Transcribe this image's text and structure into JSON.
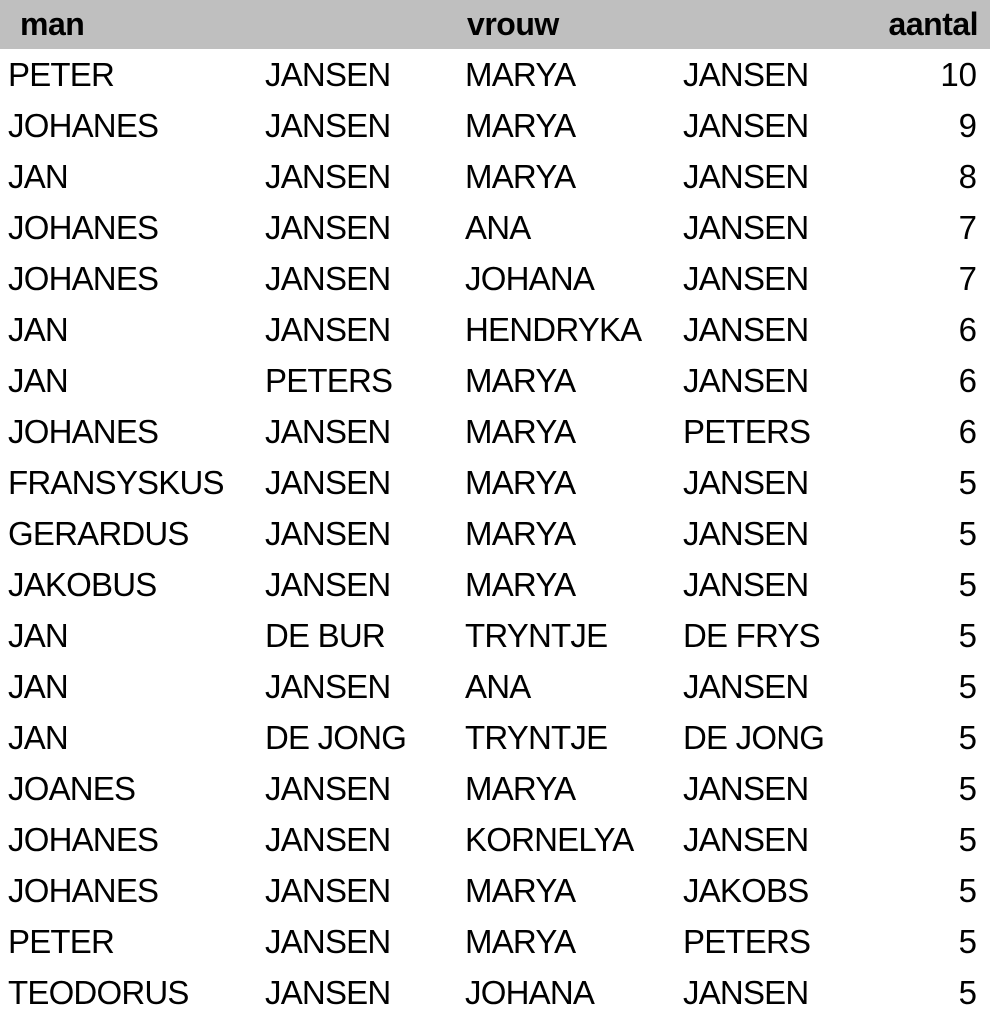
{
  "colors": {
    "header_background": "#bfbfbf",
    "text": "#000000",
    "page_background": "#ffffff"
  },
  "chart_data": {
    "type": "table",
    "headers": {
      "man": "man",
      "vrouw": "vrouw",
      "aantal": "aantal"
    },
    "columns": [
      "man_first",
      "man_last",
      "vrouw_first",
      "vrouw_last",
      "aantal"
    ],
    "rows": [
      {
        "man_first": "PETER",
        "man_last": "JANSEN",
        "vrouw_first": "MARYA",
        "vrouw_last": "JANSEN",
        "aantal": "10"
      },
      {
        "man_first": "JOHANES",
        "man_last": "JANSEN",
        "vrouw_first": "MARYA",
        "vrouw_last": "JANSEN",
        "aantal": "9"
      },
      {
        "man_first": "JAN",
        "man_last": "JANSEN",
        "vrouw_first": "MARYA",
        "vrouw_last": "JANSEN",
        "aantal": "8"
      },
      {
        "man_first": "JOHANES",
        "man_last": "JANSEN",
        "vrouw_first": "ANA",
        "vrouw_last": "JANSEN",
        "aantal": "7"
      },
      {
        "man_first": "JOHANES",
        "man_last": "JANSEN",
        "vrouw_first": "JOHANA",
        "vrouw_last": "JANSEN",
        "aantal": "7"
      },
      {
        "man_first": "JAN",
        "man_last": "JANSEN",
        "vrouw_first": "HENDRYKA",
        "vrouw_last": "JANSEN",
        "aantal": "6"
      },
      {
        "man_first": "JAN",
        "man_last": "PETERS",
        "vrouw_first": "MARYA",
        "vrouw_last": "JANSEN",
        "aantal": "6"
      },
      {
        "man_first": "JOHANES",
        "man_last": "JANSEN",
        "vrouw_first": "MARYA",
        "vrouw_last": "PETERS",
        "aantal": "6"
      },
      {
        "man_first": "FRANSYSKUS",
        "man_last": "JANSEN",
        "vrouw_first": "MARYA",
        "vrouw_last": "JANSEN",
        "aantal": "5"
      },
      {
        "man_first": "GERARDUS",
        "man_last": "JANSEN",
        "vrouw_first": "MARYA",
        "vrouw_last": "JANSEN",
        "aantal": "5"
      },
      {
        "man_first": "JAKOBUS",
        "man_last": "JANSEN",
        "vrouw_first": "MARYA",
        "vrouw_last": "JANSEN",
        "aantal": "5"
      },
      {
        "man_first": "JAN",
        "man_last": "DE BUR",
        "vrouw_first": "TRYNTJE",
        "vrouw_last": "DE FRYS",
        "aantal": "5"
      },
      {
        "man_first": "JAN",
        "man_last": "JANSEN",
        "vrouw_first": "ANA",
        "vrouw_last": "JANSEN",
        "aantal": "5"
      },
      {
        "man_first": "JAN",
        "man_last": "DE JONG",
        "vrouw_first": "TRYNTJE",
        "vrouw_last": "DE JONG",
        "aantal": "5"
      },
      {
        "man_first": "JOANES",
        "man_last": "JANSEN",
        "vrouw_first": "MARYA",
        "vrouw_last": "JANSEN",
        "aantal": "5"
      },
      {
        "man_first": "JOHANES",
        "man_last": "JANSEN",
        "vrouw_first": "KORNELYA",
        "vrouw_last": "JANSEN",
        "aantal": "5"
      },
      {
        "man_first": "JOHANES",
        "man_last": "JANSEN",
        "vrouw_first": "MARYA",
        "vrouw_last": "JAKOBS",
        "aantal": "5"
      },
      {
        "man_first": "PETER",
        "man_last": "JANSEN",
        "vrouw_first": "MARYA",
        "vrouw_last": "PETERS",
        "aantal": "5"
      },
      {
        "man_first": "TEODORUS",
        "man_last": "JANSEN",
        "vrouw_first": "JOHANA",
        "vrouw_last": "JANSEN",
        "aantal": "5"
      }
    ]
  }
}
